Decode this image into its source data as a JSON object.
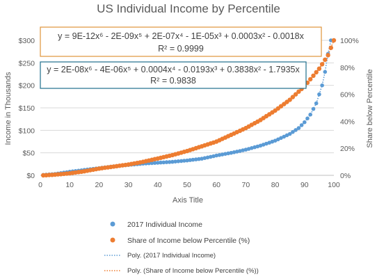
{
  "chart_data": {
    "type": "scatter",
    "title": "US Individual Income by Percentile",
    "xlabel": "Axis Title",
    "ylabel_left": "Income in Thousands",
    "ylabel_right": "Share below Percentile",
    "xlim": [
      0,
      100
    ],
    "ylim_left": [
      0,
      300
    ],
    "ylim_right": [
      0,
      100
    ],
    "x_ticks": [
      "0",
      "10",
      "20",
      "30",
      "40",
      "50",
      "60",
      "70",
      "80",
      "90",
      "100"
    ],
    "y_left_ticks": [
      "$0",
      "$50",
      "$100",
      "$150",
      "$200",
      "$250",
      "$300"
    ],
    "y_right_ticks": [
      "0%",
      "20%",
      "40%",
      "60%",
      "80%",
      "100%"
    ],
    "gridlines": true,
    "legend_position": "bottom",
    "series": [
      {
        "name": "2017 Individual Income",
        "axis": "left",
        "color": "#5B9BD5",
        "x": [
          1,
          5,
          10,
          15,
          20,
          25,
          30,
          35,
          40,
          45,
          50,
          55,
          60,
          65,
          70,
          75,
          80,
          85,
          88,
          90,
          92,
          94,
          95,
          96,
          97,
          98,
          99
        ],
        "y": [
          1,
          3,
          8,
          12,
          16,
          20,
          23,
          26,
          28,
          30,
          33,
          37,
          44,
          50,
          57,
          66,
          77,
          92,
          105,
          118,
          135,
          160,
          180,
          200,
          230,
          270,
          300
        ]
      },
      {
        "name": "Share of Income below Percentile (%)",
        "axis": "right",
        "color": "#ED7D31",
        "x": [
          1,
          5,
          10,
          15,
          20,
          25,
          30,
          35,
          40,
          45,
          50,
          55,
          60,
          65,
          70,
          75,
          80,
          85,
          90,
          95,
          98,
          100
        ],
        "y": [
          0,
          0.5,
          1.5,
          3,
          5,
          6.5,
          8,
          10,
          12.5,
          15,
          18,
          21.5,
          25,
          30,
          35,
          41,
          48,
          56,
          66,
          79,
          89,
          100
        ]
      }
    ],
    "trendlines": [
      {
        "name": "Poly. (2017 Individual Income)",
        "series": 0,
        "color": "#5B9BD5",
        "equation": "y = 2E-08x⁶ - 4E-06x⁵ + 0.0004x⁴ - 0.0193x³ + 0.3838x² - 1.7935x",
        "r_squared": "R² = 0.9838",
        "box_color": "#1F6E8C"
      },
      {
        "name": "Poly. (Share of Income below Percentile (%))",
        "series": 1,
        "color": "#ED7D31",
        "equation": "y = 9E-12x⁶ - 2E-09x⁵ + 2E-07x⁴ - 1E-05x³ + 0.0003x² - 0.0018x",
        "r_squared": "R² = 0.9999",
        "box_color": "#E0943A"
      }
    ]
  }
}
